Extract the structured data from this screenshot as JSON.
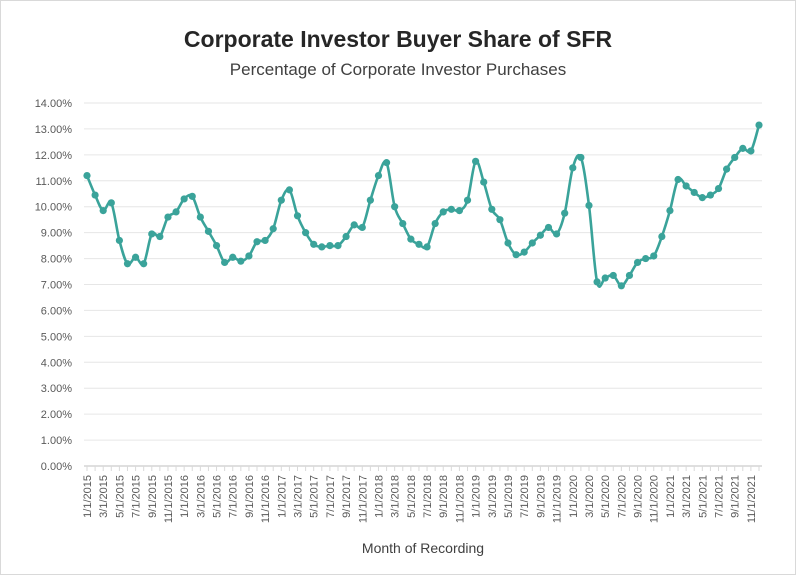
{
  "chart_data": {
    "type": "line",
    "title": "Corporate Investor Buyer Share of SFR",
    "subtitle": "Percentage of Corporate Investor Purchases",
    "xlabel": "Month of Recording",
    "ylabel": "",
    "ylim": [
      0,
      14
    ],
    "y_tick_labels": [
      "0.00%",
      "1.00%",
      "2.00%",
      "3.00%",
      "4.00%",
      "5.00%",
      "6.00%",
      "7.00%",
      "8.00%",
      "9.00%",
      "10.00%",
      "11.00%",
      "12.00%",
      "13.00%",
      "14.00%"
    ],
    "x_tick_labels": [
      "1/1/2015",
      "3/1/2015",
      "5/1/2015",
      "7/1/2015",
      "9/1/2015",
      "11/1/2015",
      "1/1/2016",
      "3/1/2016",
      "5/1/2016",
      "7/1/2016",
      "9/1/2016",
      "11/1/2016",
      "1/1/2017",
      "3/1/2017",
      "5/1/2017",
      "7/1/2017",
      "9/1/2017",
      "11/1/2017",
      "1/1/2018",
      "3/1/2018",
      "5/1/2018",
      "7/1/2018",
      "9/1/2018",
      "11/1/2018",
      "1/1/2019",
      "3/1/2019",
      "5/1/2019",
      "7/1/2019",
      "9/1/2019",
      "11/1/2019",
      "1/1/2020",
      "3/1/2020",
      "5/1/2020",
      "7/1/2020",
      "9/1/2020",
      "11/1/2020",
      "1/1/2021",
      "3/1/2021",
      "5/1/2021",
      "7/1/2021",
      "9/1/2021",
      "11/1/2021"
    ],
    "grid": "horizontal",
    "line_color": "#3aa39a",
    "series": [
      {
        "values": [
          11.2,
          10.45,
          9.85,
          10.15,
          8.7,
          7.8,
          8.05,
          7.8,
          8.95,
          8.85,
          9.6,
          9.8,
          10.3,
          10.4,
          9.6,
          9.05,
          8.5,
          7.85,
          8.05,
          7.9,
          8.1,
          8.65,
          8.7,
          9.15,
          10.25,
          10.65,
          9.65,
          9.0,
          8.55,
          8.45,
          8.5,
          8.5,
          8.85,
          9.3,
          9.2,
          10.25,
          11.2,
          11.7,
          10.0,
          9.35,
          8.75,
          8.55,
          8.45,
          9.35,
          9.8,
          9.9,
          9.85,
          10.25,
          11.75,
          10.95,
          9.9,
          9.5,
          8.6,
          8.15,
          8.25,
          8.6,
          8.9,
          9.2,
          8.95,
          9.75,
          11.5,
          11.9,
          10.05,
          7.1,
          7.25,
          7.35,
          6.95,
          7.35,
          7.85,
          8.0,
          8.1,
          8.85,
          9.85,
          11.05,
          10.8,
          10.55,
          10.35,
          10.45,
          10.7,
          11.45,
          11.9,
          12.25,
          12.15,
          13.15
        ]
      }
    ]
  }
}
